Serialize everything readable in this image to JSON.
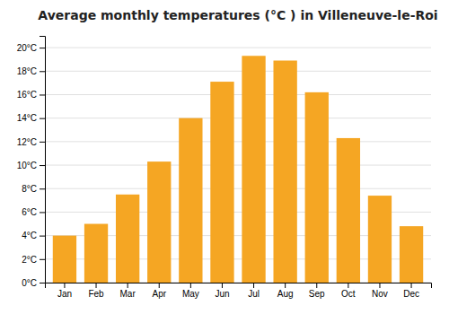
{
  "chart_data": {
    "type": "bar",
    "title": "Average monthly temperatures (°C ) in Villeneuve-le-Roi",
    "categories": [
      "Jan",
      "Feb",
      "Mar",
      "Apr",
      "May",
      "Jun",
      "Jul",
      "Aug",
      "Sep",
      "Oct",
      "Nov",
      "Dec"
    ],
    "values": [
      4.0,
      5.0,
      7.5,
      10.3,
      14.0,
      17.1,
      19.3,
      18.9,
      16.2,
      12.3,
      7.4,
      4.8
    ],
    "color": "#F5A623",
    "ylim": [
      0,
      21
    ],
    "yticks": [
      {
        "value": 0,
        "label": "0°C"
      },
      {
        "value": 2,
        "label": "2°C"
      },
      {
        "value": 4,
        "label": "4°C"
      },
      {
        "value": 6,
        "label": "6°C"
      },
      {
        "value": 8,
        "label": "8°C"
      },
      {
        "value": 10,
        "label": "10°C"
      },
      {
        "value": 12,
        "label": "12°C"
      },
      {
        "value": 14,
        "label": "14°C"
      },
      {
        "value": 16,
        "label": "16°C"
      },
      {
        "value": 18,
        "label": "18°C"
      },
      {
        "value": 20,
        "label": "20°C"
      }
    ],
    "grid": true
  }
}
